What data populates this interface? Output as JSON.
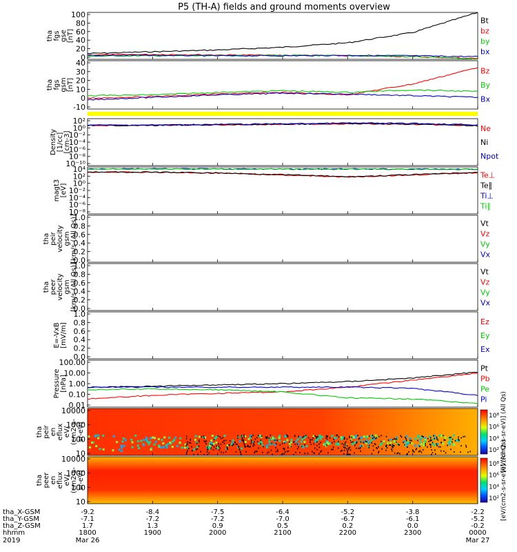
{
  "title": "P5 (TH-A) fields and ground moments overview",
  "colors": {
    "black": "#000000",
    "red": "#ff0000",
    "green": "#00cc00",
    "blue": "#0000cc",
    "yellow": "#ffff00"
  },
  "panels": [
    {
      "id": "fgs-gse",
      "ylabel": [
        "tha",
        "fgs",
        "gse",
        "[nT]"
      ],
      "yscale": "linear",
      "ylim": [
        -5,
        100
      ],
      "ticks": [
        "100",
        "80",
        "60",
        "40",
        "20",
        "0"
      ],
      "legend": [
        {
          "label": "Bt",
          "color": "#000000"
        },
        {
          "label": "bz",
          "color": "#ff0000"
        },
        {
          "label": "by",
          "color": "#00cc00"
        },
        {
          "label": "bx",
          "color": "#0000cc"
        }
      ]
    },
    {
      "id": "fgs-gsm",
      "ylabel": [
        "tha",
        "fgs",
        "gsm",
        "[nT]"
      ],
      "yscale": "linear",
      "ylim": [
        -18,
        40
      ],
      "ticks": [
        "40",
        "30",
        "20",
        "10",
        "0",
        "-10"
      ],
      "legend": [
        {
          "label": "Bz",
          "color": "#ff0000"
        },
        {
          "label": "By",
          "color": "#00cc00"
        },
        {
          "label": "Bx",
          "color": "#0000cc"
        }
      ]
    },
    {
      "id": "density",
      "ylabel": [
        "Density",
        "[1/cc]",
        "[cm-3]"
      ],
      "yscale": "log",
      "ylim": [
        1e-12,
        100.0
      ],
      "ticks": [
        "10²",
        "10⁰",
        "10⁻²",
        "10⁻⁴",
        "10⁻⁶",
        "10⁻⁸",
        "10⁻¹⁰"
      ],
      "legend": [
        {
          "label": "Ne",
          "color": "#ff0000"
        },
        {
          "label": "Ni",
          "color": "#000000"
        },
        {
          "label": "Npot",
          "color": "#0000cc"
        }
      ]
    },
    {
      "id": "temperature",
      "ylabel": [
        "magt3",
        "[eV]"
      ],
      "yscale": "log",
      "ylim": [
        1e-10,
        10000.0
      ],
      "ticks": [
        "10⁴",
        "10²",
        "10⁰",
        "10⁻²",
        "10⁻⁴",
        "10⁻⁶",
        "10⁻⁸"
      ],
      "legend": [
        {
          "label": "Te⊥",
          "color": "#ff0000"
        },
        {
          "label": "Te∥",
          "color": "#000000"
        },
        {
          "label": "Ti⊥",
          "color": "#0000cc"
        },
        {
          "label": "Ti∥",
          "color": "#00cc00"
        }
      ]
    },
    {
      "id": "peir-velocity",
      "ylabel": [
        "tha",
        "peir",
        "velocity",
        "gsm",
        "[km/s (All Qs)]"
      ],
      "yscale": "linear",
      "ylim": [
        0,
        1
      ],
      "ticks": [
        "1.0",
        "0.8",
        "0.6",
        "0.4",
        "0.2",
        "0.0"
      ],
      "legend": [
        {
          "label": "Vt",
          "color": "#000000"
        },
        {
          "label": "Vz",
          "color": "#ff0000"
        },
        {
          "label": "Vy",
          "color": "#00cc00"
        },
        {
          "label": "Vx",
          "color": "#0000cc"
        }
      ]
    },
    {
      "id": "peer-velocity",
      "ylabel": [
        "tha",
        "peer",
        "velocity",
        "gsm",
        "[km/s (All Qs)]"
      ],
      "yscale": "linear",
      "ylim": [
        0,
        1
      ],
      "ticks": [
        "1.0",
        "0.8",
        "0.6",
        "0.4",
        "0.2",
        "0.0"
      ],
      "legend": [
        {
          "label": "Vt",
          "color": "#000000"
        },
        {
          "label": "Vz",
          "color": "#ff0000"
        },
        {
          "label": "Vy",
          "color": "#00cc00"
        },
        {
          "label": "Vx",
          "color": "#0000cc"
        }
      ]
    },
    {
      "id": "efield",
      "ylabel": [
        "E=-VxB",
        "[mV/m]"
      ],
      "yscale": "linear",
      "ylim": [
        0,
        1
      ],
      "ticks": [
        "1.0",
        "0.8",
        "0.6",
        "0.4",
        "0.2",
        "0.0"
      ],
      "legend": [
        {
          "label": "Ez",
          "color": "#ff0000"
        },
        {
          "label": "Ey",
          "color": "#00cc00"
        },
        {
          "label": "Ex",
          "color": "#0000cc"
        }
      ]
    },
    {
      "id": "pressure",
      "ylabel": [
        "Pressure",
        "[nPa]"
      ],
      "yscale": "log",
      "ylim": [
        0.01,
        100
      ],
      "ticks": [
        "100.00",
        "10.00",
        "1.00",
        "0.10",
        "0.01"
      ],
      "legend": [
        {
          "label": "Pt",
          "color": "#000000"
        },
        {
          "label": "Pb",
          "color": "#ff0000"
        },
        {
          "label": "Pe",
          "color": "#00cc00"
        },
        {
          "label": "Pi",
          "color": "#0000cc"
        }
      ]
    },
    {
      "id": "peir-eflux",
      "ylabel": [
        "tha",
        "peir",
        "en",
        "eflux",
        "eV/",
        "(cm2-s-",
        "sr-eV)"
      ],
      "yscale": "log",
      "ylim": [
        7,
        14000
      ],
      "ticks": [
        "10000",
        "1000",
        "100",
        "10"
      ],
      "colorbar_ticks": [
        "10⁸",
        "10⁶",
        "10⁴",
        "10²"
      ],
      "colorbar_label": "[eV/(cm2-s-sr-eV)] (All Qs)"
    },
    {
      "id": "peer-eflux",
      "ylabel": [
        "tha",
        "peer",
        "en",
        "eflux",
        "eV/",
        "(cm2-s-",
        "sr-eV)"
      ],
      "yscale": "log",
      "ylim": [
        7,
        14000
      ],
      "ticks": [
        "10000",
        "1000",
        "100",
        "10"
      ],
      "colorbar_ticks": [
        "10⁸",
        "10⁶",
        "10⁴",
        "10²"
      ],
      "colorbar_label": "[eV/(cm2-s-sr-eV)] (All Qs)"
    }
  ],
  "xaxis": {
    "row_labels": [
      "tha_X-GSM",
      "tha_Y-GSM",
      "tha_Z-GSM",
      "hhmm",
      "2019"
    ],
    "columns": [
      {
        "x": -9.2,
        "y": -7.1,
        "z": 1.7,
        "hhmm": "1800",
        "date": "Mar 26"
      },
      {
        "x": -8.4,
        "y": -7.2,
        "z": 1.3,
        "hhmm": "1900",
        "date": ""
      },
      {
        "x": -7.5,
        "y": -7.2,
        "z": 0.9,
        "hhmm": "2000",
        "date": ""
      },
      {
        "x": -6.4,
        "y": -7.0,
        "z": 0.5,
        "hhmm": "2100",
        "date": ""
      },
      {
        "x": -5.2,
        "y": -6.7,
        "z": 0.2,
        "hhmm": "2200",
        "date": ""
      },
      {
        "x": -3.8,
        "y": -6.1,
        "z": -0.0,
        "hhmm": "2300",
        "date": ""
      },
      {
        "x": -2.2,
        "y": -5.2,
        "z": -0.2,
        "hhmm": "0000",
        "date": "Mar 27"
      }
    ]
  },
  "chart_data": [
    {
      "type": "line",
      "x": [
        "1800",
        "1900",
        "2000",
        "2100",
        "2200",
        "2300",
        "0000"
      ],
      "series": [
        {
          "name": "Bt",
          "color": "#000000",
          "values": [
            8,
            12,
            16,
            22,
            32,
            55,
            100
          ]
        },
        {
          "name": "bz",
          "color": "#ff0000",
          "values": [
            5,
            6,
            5,
            4,
            3,
            1,
            -3
          ]
        },
        {
          "name": "by",
          "color": "#00cc00",
          "values": [
            2,
            3,
            3,
            4,
            3,
            1,
            -4
          ]
        },
        {
          "name": "bx",
          "color": "#0000cc",
          "values": [
            4,
            4,
            3,
            3,
            4,
            3,
            1
          ]
        }
      ],
      "ylim": [
        -5,
        100
      ]
    },
    {
      "type": "line",
      "x": [
        "1800",
        "1900",
        "2000",
        "2100",
        "2200",
        "2300",
        "0000"
      ],
      "series": [
        {
          "name": "Bz",
          "color": "#ff0000",
          "values": [
            -5,
            -3,
            0,
            2,
            -1,
            12,
            32
          ]
        },
        {
          "name": "By",
          "color": "#00cc00",
          "values": [
            -2,
            -1,
            2,
            4,
            2,
            5,
            3
          ]
        },
        {
          "name": "Bx",
          "color": "#0000cc",
          "values": [
            -7,
            -4,
            -1,
            1,
            0,
            -2,
            -4
          ]
        }
      ],
      "ylim": [
        -18,
        40
      ]
    },
    {
      "type": "line",
      "x": [
        "1800",
        "1900",
        "2000",
        "2100",
        "2200",
        "2300",
        "0000"
      ],
      "series": [
        {
          "name": "Ne",
          "color": "#ff0000",
          "values": [
            1,
            1,
            1.4,
            2,
            3,
            2,
            0.7
          ]
        },
        {
          "name": "Ni",
          "color": "#000000",
          "values": [
            1,
            1,
            1.5,
            2.2,
            3.5,
            2.5,
            0.8
          ]
        },
        {
          "name": "Npot",
          "color": "#0000cc",
          "values": [
            1.2,
            1.3,
            2,
            3,
            5,
            4,
            1.5
          ]
        }
      ],
      "ylim": [
        1e-12,
        100.0
      ]
    },
    {
      "type": "line",
      "x": [
        "1800",
        "1900",
        "2000",
        "2100",
        "2200",
        "2300",
        "0000"
      ],
      "series": [
        {
          "name": "Te⊥",
          "color": "#ff0000",
          "values": [
            300,
            250,
            150,
            40,
            10,
            40,
            200
          ]
        },
        {
          "name": "Te∥",
          "color": "#000000",
          "values": [
            330,
            280,
            170,
            50,
            12,
            50,
            230
          ]
        },
        {
          "name": "Ti⊥",
          "color": "#0000cc",
          "values": [
            3000,
            2800,
            2600,
            2500,
            2500,
            2400,
            2000
          ]
        },
        {
          "name": "Ti∥",
          "color": "#00cc00",
          "values": [
            2800,
            2600,
            2400,
            2300,
            2300,
            2200,
            1800
          ]
        }
      ],
      "ylim": [
        1e-10,
        10000.0
      ]
    },
    {
      "type": "line",
      "series": [],
      "ylim": [
        0,
        1
      ]
    },
    {
      "type": "line",
      "series": [],
      "ylim": [
        0,
        1
      ]
    },
    {
      "type": "line",
      "series": [],
      "ylim": [
        0,
        1
      ]
    },
    {
      "type": "line",
      "x": [
        "1800",
        "1900",
        "2000",
        "2100",
        "2200",
        "2300",
        "0000"
      ],
      "series": [
        {
          "name": "Pt",
          "color": "#000000",
          "values": [
            0.5,
            0.6,
            0.8,
            1,
            1.5,
            3,
            10
          ]
        },
        {
          "name": "Pb",
          "color": "#ff0000",
          "values": [
            0.05,
            0.1,
            0.15,
            0.2,
            0.5,
            2,
            8
          ]
        },
        {
          "name": "Pe",
          "color": "#00cc00",
          "values": [
            0.3,
            0.35,
            0.3,
            0.2,
            0.06,
            0.05,
            0.02
          ]
        },
        {
          "name": "Pi",
          "color": "#0000cc",
          "values": [
            0.5,
            0.5,
            0.5,
            0.5,
            0.5,
            0.4,
            0.1
          ]
        }
      ],
      "ylim": [
        0.01,
        100
      ]
    },
    {
      "type": "heatmap",
      "ylim": [
        7,
        14000
      ],
      "colorbar_ticks": [
        "10⁸",
        "10⁶",
        "10⁴",
        "10²"
      ]
    },
    {
      "type": "heatmap",
      "ylim": [
        7,
        14000
      ],
      "colorbar_ticks": [
        "10⁸",
        "10⁶",
        "10⁴",
        "10²"
      ]
    }
  ]
}
